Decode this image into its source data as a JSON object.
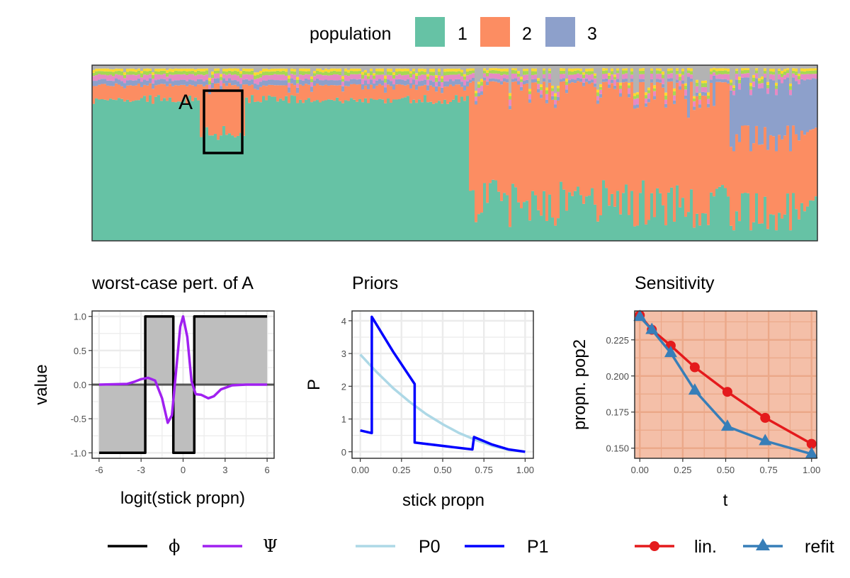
{
  "top_legend": {
    "title": "population",
    "items": [
      {
        "label": "1",
        "color": "#66C2A5"
      },
      {
        "label": "2",
        "color": "#FC8D62"
      },
      {
        "label": "3",
        "color": "#8DA0CB"
      }
    ]
  },
  "structure_plot": {
    "box_label": "A",
    "extra_colors": [
      "#E78AC3",
      "#A6D854",
      "#FFD92F",
      "#B3B3B3"
    ]
  },
  "chart_data": [
    {
      "type": "area",
      "title": "",
      "description_free": true,
      "series": [
        {
          "name": "1",
          "color": "#66C2A5"
        },
        {
          "name": "2",
          "color": "#FC8D62"
        },
        {
          "name": "3",
          "color": "#8DA0CB"
        }
      ],
      "segments": [
        {
          "from": 0.0,
          "to": 0.52,
          "p1": 0.82,
          "p2": 0.08,
          "p3": 0.03
        },
        {
          "from": 0.52,
          "to": 0.88,
          "p1": 0.25,
          "p2": 0.67,
          "p3": 0.02
        },
        {
          "from": 0.88,
          "to": 1.0,
          "p1": 0.15,
          "p2": 0.45,
          "p3": 0.32
        }
      ]
    },
    {
      "type": "line",
      "title": "worst-case pert. of A",
      "xlabel": "logit(stick propn)",
      "ylabel": "value",
      "xlim": [
        -6.5,
        6.5
      ],
      "ylim": [
        -1.08,
        1.08
      ],
      "xticks": [
        "-6",
        "-3",
        "0",
        "3",
        "6"
      ],
      "xtick_values": [
        -6,
        -3,
        0,
        3,
        6
      ],
      "yticks": [
        "-1.0",
        "-0.5",
        "0.0",
        "0.5",
        "1.0"
      ],
      "ytick_values": [
        -1.0,
        -0.5,
        0.0,
        0.5,
        1.0
      ],
      "series": [
        {
          "name": "ϕ",
          "color": "#000000",
          "x": [
            -6,
            -2.7,
            -2.7,
            -0.7,
            -0.7,
            0.8,
            0.8,
            6
          ],
          "y": [
            -1,
            -1,
            1,
            1,
            -1,
            -1,
            1,
            1
          ]
        },
        {
          "name": "Ψ",
          "color": "#A020F0",
          "x": [
            -6,
            -4,
            -3.5,
            -3,
            -2.5,
            -2,
            -1.5,
            -1.1,
            -0.8,
            -0.5,
            -0.2,
            0,
            0.3,
            0.6,
            0.9,
            1.3,
            1.8,
            2.2,
            2.7,
            3.5,
            4.5,
            6
          ],
          "y": [
            0,
            0.01,
            0.04,
            0.08,
            0.1,
            0.06,
            -0.2,
            -0.56,
            -0.45,
            0.2,
            0.85,
            1.0,
            0.7,
            0.05,
            -0.14,
            -0.15,
            -0.2,
            -0.17,
            -0.07,
            -0.01,
            0,
            0
          ]
        }
      ]
    },
    {
      "type": "line",
      "title": "Priors",
      "xlabel": "stick propn",
      "ylabel": "P",
      "xlim": [
        -0.05,
        1.05
      ],
      "ylim": [
        -0.2,
        4.3
      ],
      "xticks": [
        "0.00",
        "0.25",
        "0.50",
        "0.75",
        "1.00"
      ],
      "xtick_values": [
        0,
        0.25,
        0.5,
        0.75,
        1.0
      ],
      "yticks": [
        "0",
        "1",
        "2",
        "3",
        "4"
      ],
      "ytick_values": [
        0,
        1,
        2,
        3,
        4
      ],
      "series": [
        {
          "name": "P0",
          "color": "#ADD8E6",
          "x": [
            0,
            0.1,
            0.2,
            0.3,
            0.4,
            0.5,
            0.6,
            0.7,
            0.8,
            0.9,
            1.0
          ],
          "y": [
            2.97,
            2.43,
            1.94,
            1.52,
            1.15,
            0.84,
            0.57,
            0.36,
            0.18,
            0.06,
            0.0
          ]
        },
        {
          "name": "P1",
          "color": "#0000FF",
          "x": [
            0,
            0.07,
            0.07,
            0.2,
            0.33,
            0.33,
            0.68,
            0.69,
            0.8,
            0.9,
            1.0
          ],
          "y": [
            0.65,
            0.57,
            4.12,
            3.05,
            2.07,
            0.28,
            0.07,
            0.45,
            0.22,
            0.07,
            0.0
          ]
        }
      ]
    },
    {
      "type": "line",
      "title": "Sensitivity",
      "xlabel": "t",
      "ylabel": "propn. pop2",
      "xlim": [
        -0.03,
        1.03
      ],
      "ylim": [
        0.143,
        0.245
      ],
      "xticks": [
        "0.00",
        "0.25",
        "0.50",
        "0.75",
        "1.00"
      ],
      "xtick_values": [
        0,
        0.25,
        0.5,
        0.75,
        1.0
      ],
      "yticks": [
        "0.150",
        "0.175",
        "0.200",
        "0.225"
      ],
      "ytick_values": [
        0.15,
        0.175,
        0.2,
        0.225
      ],
      "series": [
        {
          "name": "lin.",
          "color": "#E41A1C",
          "marker": "circle",
          "x": [
            0,
            0.07,
            0.18,
            0.32,
            0.51,
            0.73,
            1.0
          ],
          "y": [
            0.242,
            0.232,
            0.221,
            0.206,
            0.189,
            0.171,
            0.153
          ]
        },
        {
          "name": "refit",
          "color": "#377EB8",
          "marker": "triangle",
          "x": [
            0,
            0.07,
            0.18,
            0.32,
            0.51,
            0.73,
            1.0
          ],
          "y": [
            0.241,
            0.232,
            0.216,
            0.19,
            0.165,
            0.155,
            0.146
          ]
        }
      ]
    }
  ],
  "bottom_legends": [
    {
      "items": [
        {
          "label": "ϕ",
          "color": "#000000"
        },
        {
          "label": "Ψ",
          "color": "#A020F0"
        }
      ]
    },
    {
      "items": [
        {
          "label": "P0",
          "color": "#ADD8E6"
        },
        {
          "label": "P1",
          "color": "#0000FF"
        }
      ]
    },
    {
      "items": [
        {
          "label": "lin.",
          "color": "#E41A1C"
        },
        {
          "label": "refit",
          "color": "#377EB8"
        }
      ]
    }
  ]
}
